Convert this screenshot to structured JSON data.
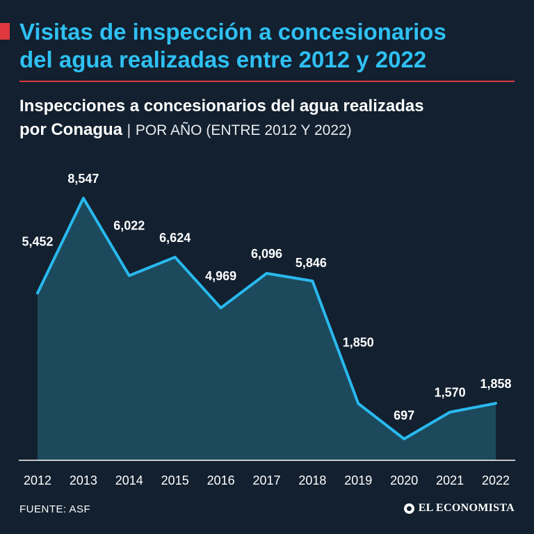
{
  "header": {
    "title_line1": "Visitas de inspección a concesionarios",
    "title_line2": "del agua realizadas entre 2012 y 2022",
    "subtitle_bold_line1": "Inspecciones a concesionarios del agua realizadas",
    "subtitle_bold_line2": "por Conagua",
    "subtitle_separator": "|",
    "subtitle_light": "POR AÑO (ENTRE 2012 Y 2022)"
  },
  "footer": {
    "source": "FUENTE: ASF",
    "brand": "EL ECONOMISTA"
  },
  "colors": {
    "background": "#12202f",
    "title": "#2fc0f3",
    "accent": "#e0383e",
    "line": "#29b9ef",
    "area": "#1c4a5c"
  },
  "chart_data": {
    "type": "area",
    "title": "Inspecciones a concesionarios del agua realizadas por Conagua",
    "xlabel": "",
    "ylabel": "",
    "ylim": [
      0,
      9000
    ],
    "grid": false,
    "categories": [
      "2012",
      "2013",
      "2014",
      "2015",
      "2016",
      "2017",
      "2018",
      "2019",
      "2020",
      "2021",
      "2022"
    ],
    "values": [
      5452,
      8547,
      6022,
      6624,
      4969,
      6096,
      5846,
      1850,
      697,
      1570,
      1858
    ],
    "labels": [
      "5,452",
      "8,547",
      "6,022",
      "6,624",
      "4,969",
      "6,096",
      "5,846",
      "1,850",
      "697",
      "1,570",
      "1,858"
    ]
  }
}
